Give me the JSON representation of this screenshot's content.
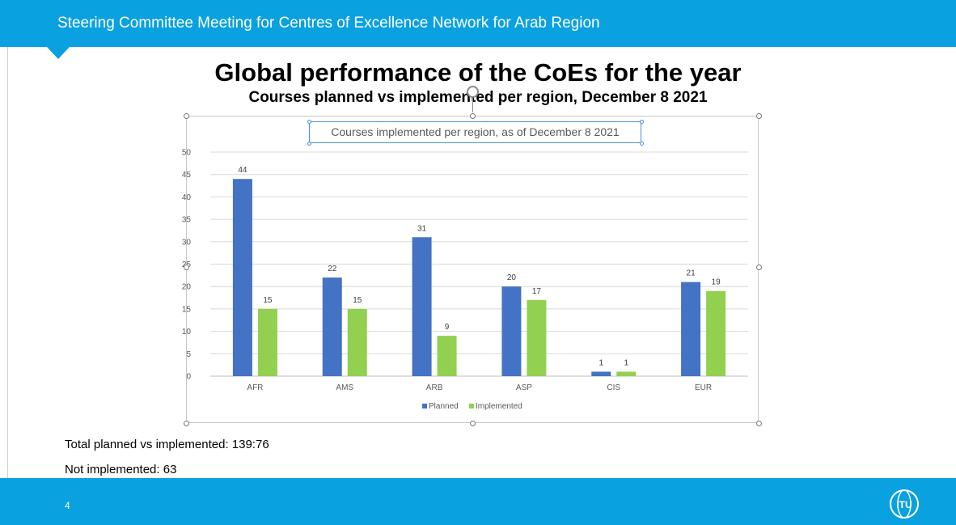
{
  "header": {
    "title": "Steering Committee Meeting for Centres of Excellence Network for Arab Region"
  },
  "slide": {
    "title": "Global performance of the CoEs for the year",
    "subtitle": "Courses planned vs implemented per region, December 8 2021",
    "total_text": "Total planned vs implemented: 139:76",
    "not_implemented_text": "Not implemented: 63",
    "page_number": "4",
    "logo_text": "ITU"
  },
  "colors": {
    "bar_blue": "#4472c4",
    "accent": "#0aa1e0",
    "planned": "#4472c4",
    "implemented": "#92d050"
  },
  "chart_data": {
    "type": "bar",
    "title": "Courses implemented per region, as of December 8 2021",
    "categories": [
      "AFR",
      "AMS",
      "ARB",
      "ASP",
      "CIS",
      "EUR"
    ],
    "series": [
      {
        "name": "Planned",
        "values": [
          44,
          22,
          31,
          20,
          1,
          21
        ]
      },
      {
        "name": "Implemented",
        "values": [
          15,
          15,
          9,
          17,
          1,
          19
        ]
      }
    ],
    "ylim": [
      0,
      50
    ],
    "yticks": [
      0,
      5,
      10,
      15,
      20,
      25,
      30,
      35,
      40,
      45,
      50
    ],
    "grid": true,
    "legend": "bottom"
  }
}
